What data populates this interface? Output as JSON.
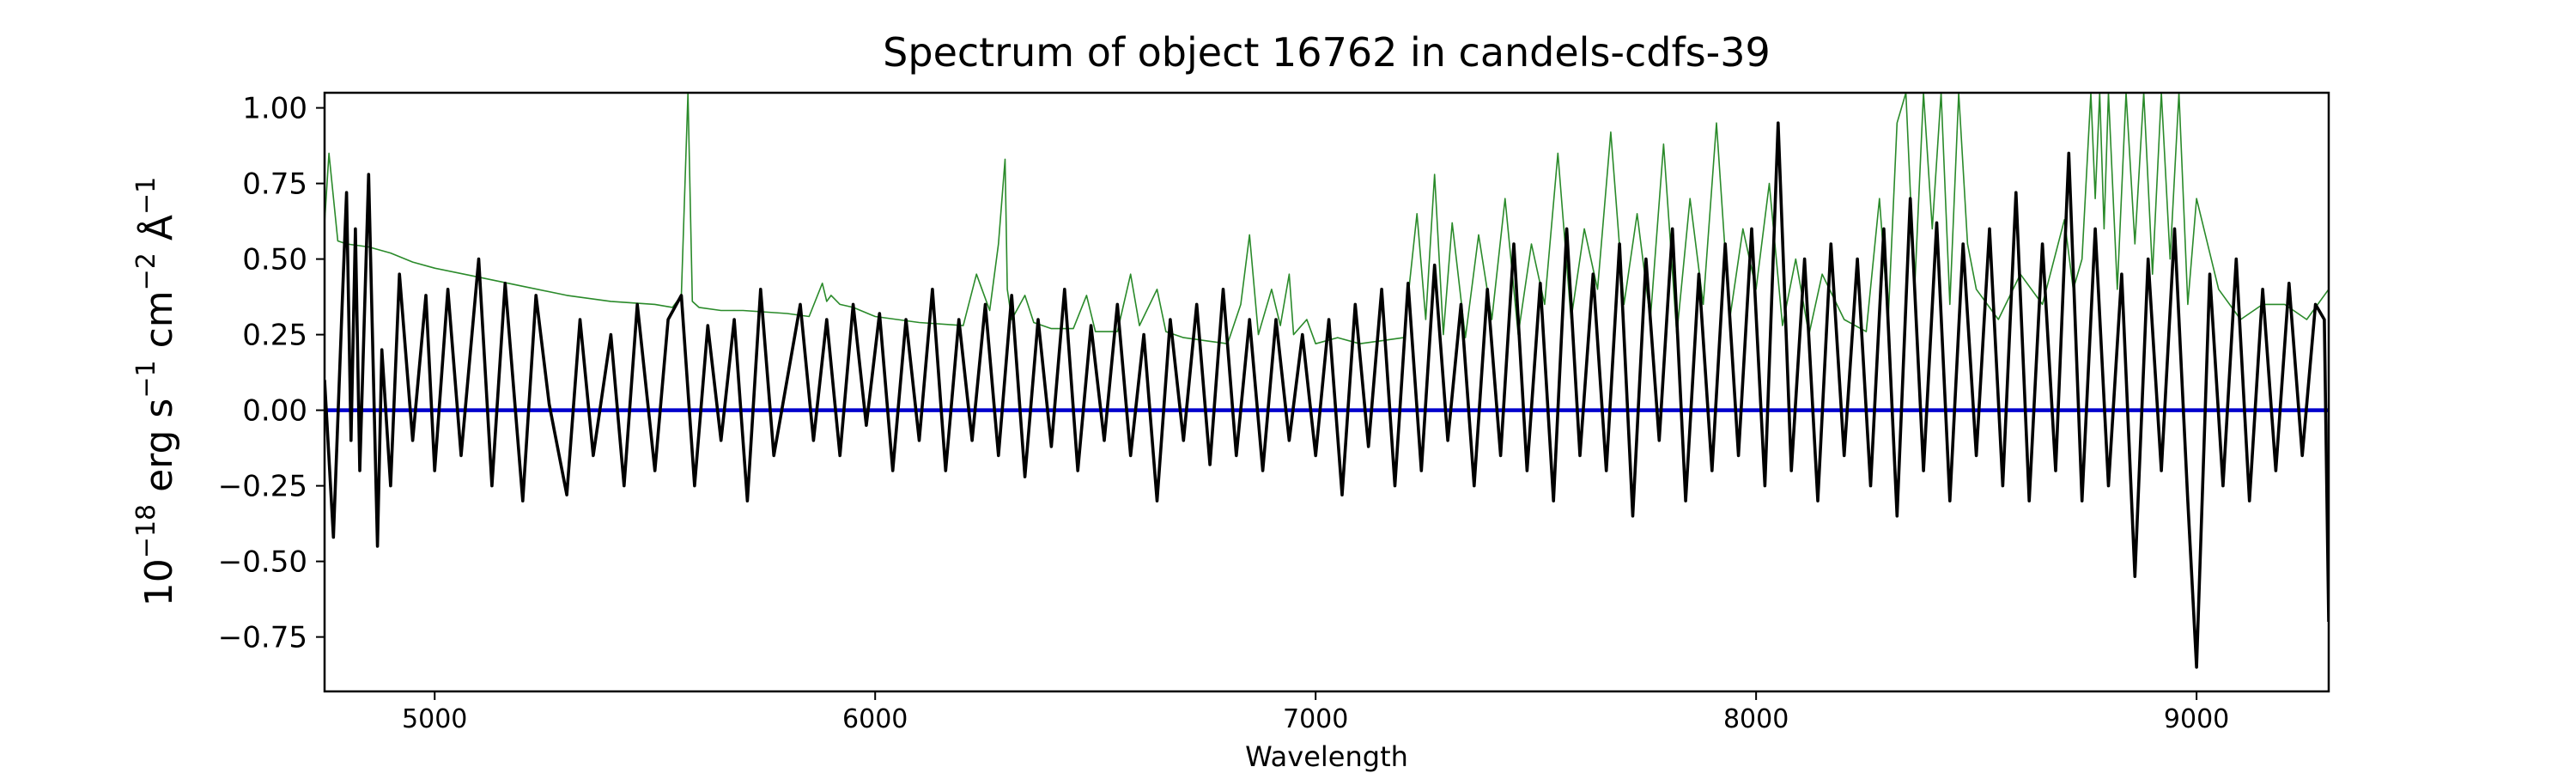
{
  "chart_data": {
    "type": "line",
    "title": "Spectrum of object 16762 in candels-cdfs-39",
    "xlabel": "Wavelength",
    "ylabel": {
      "base": "10",
      "base_exp": "−18",
      "text1": " erg s",
      "exp1": "−1",
      "text2": " cm",
      "exp2": "−2",
      "text3": " Å",
      "exp3": "−1"
    },
    "xlim": [
      4750,
      9300
    ],
    "ylim": [
      -0.93,
      1.05
    ],
    "xticks": [
      5000,
      6000,
      7000,
      8000,
      9000
    ],
    "xtick_labels": [
      "5000",
      "6000",
      "7000",
      "8000",
      "9000"
    ],
    "yticks": [
      -0.75,
      -0.5,
      -0.25,
      0.0,
      0.25,
      0.5,
      0.75,
      1.0
    ],
    "ytick_labels": [
      "−0.75",
      "−0.50",
      "−0.25",
      "0.00",
      "0.25",
      "0.50",
      "0.75",
      "1.00"
    ],
    "grid": false,
    "series": [
      {
        "color": "#2a8a2a",
        "x": [
          4750,
          4760,
          4780,
          4800,
          4850,
          4900,
          4950,
          5000,
          5100,
          5200,
          5300,
          5400,
          5500,
          5540,
          5560,
          5575,
          5585,
          5600,
          5650,
          5700,
          5800,
          5850,
          5880,
          5890,
          5900,
          5920,
          5950,
          6000,
          6100,
          6200,
          6230,
          6260,
          6280,
          6295,
          6300,
          6310,
          6340,
          6360,
          6400,
          6450,
          6480,
          6500,
          6550,
          6580,
          6600,
          6640,
          6660,
          6700,
          6750,
          6800,
          6830,
          6850,
          6870,
          6900,
          6920,
          6940,
          6950,
          6980,
          7000,
          7050,
          7100,
          7150,
          7200,
          7230,
          7250,
          7270,
          7290,
          7310,
          7340,
          7370,
          7400,
          7430,
          7460,
          7490,
          7520,
          7550,
          7580,
          7610,
          7640,
          7670,
          7700,
          7730,
          7760,
          7790,
          7820,
          7850,
          7880,
          7910,
          7940,
          7970,
          8000,
          8030,
          8060,
          8090,
          8120,
          8150,
          8200,
          8250,
          8280,
          8300,
          8320,
          8340,
          8360,
          8380,
          8400,
          8420,
          8440,
          8460,
          8480,
          8500,
          8550,
          8600,
          8650,
          8700,
          8720,
          8740,
          8760,
          8770,
          8780,
          8790,
          8800,
          8820,
          8840,
          8860,
          8880,
          8900,
          8920,
          8940,
          8960,
          8980,
          9000,
          9050,
          9100,
          9150,
          9200,
          9250,
          9300
        ],
        "y": [
          0.62,
          0.85,
          0.56,
          0.55,
          0.54,
          0.52,
          0.49,
          0.47,
          0.44,
          0.41,
          0.38,
          0.36,
          0.35,
          0.34,
          0.38,
          1.05,
          0.36,
          0.34,
          0.33,
          0.33,
          0.32,
          0.31,
          0.42,
          0.36,
          0.38,
          0.35,
          0.34,
          0.31,
          0.29,
          0.28,
          0.45,
          0.33,
          0.55,
          0.83,
          0.4,
          0.3,
          0.38,
          0.29,
          0.27,
          0.27,
          0.38,
          0.26,
          0.26,
          0.45,
          0.28,
          0.4,
          0.26,
          0.24,
          0.23,
          0.22,
          0.35,
          0.58,
          0.25,
          0.4,
          0.28,
          0.45,
          0.25,
          0.3,
          0.22,
          0.24,
          0.22,
          0.23,
          0.24,
          0.65,
          0.3,
          0.78,
          0.25,
          0.62,
          0.24,
          0.58,
          0.3,
          0.7,
          0.25,
          0.55,
          0.35,
          0.85,
          0.3,
          0.6,
          0.4,
          0.92,
          0.35,
          0.65,
          0.3,
          0.88,
          0.25,
          0.7,
          0.35,
          0.95,
          0.3,
          0.6,
          0.4,
          0.75,
          0.28,
          0.5,
          0.25,
          0.45,
          0.3,
          0.26,
          0.7,
          0.3,
          0.95,
          1.05,
          0.4,
          1.05,
          0.6,
          1.05,
          0.35,
          1.05,
          0.55,
          0.4,
          0.3,
          0.45,
          0.35,
          0.63,
          0.4,
          0.5,
          1.05,
          0.7,
          1.05,
          0.6,
          1.05,
          0.4,
          1.05,
          0.55,
          1.05,
          0.45,
          1.05,
          0.5,
          1.05,
          0.35,
          0.7,
          0.4,
          0.3,
          0.35,
          0.35,
          0.3,
          0.4
        ]
      },
      {
        "color": "#0000cc",
        "x": [
          4750,
          9300
        ],
        "y": [
          0.0,
          0.0
        ]
      },
      {
        "color": "#000000",
        "x": [
          4750,
          4770,
          4790,
          4800,
          4810,
          4820,
          4830,
          4850,
          4870,
          4880,
          4900,
          4920,
          4950,
          4980,
          5000,
          5030,
          5060,
          5100,
          5130,
          5160,
          5200,
          5230,
          5260,
          5300,
          5330,
          5360,
          5400,
          5430,
          5460,
          5500,
          5530,
          5560,
          5590,
          5620,
          5650,
          5680,
          5710,
          5740,
          5770,
          5800,
          5830,
          5860,
          5890,
          5920,
          5950,
          5980,
          6010,
          6040,
          6070,
          6100,
          6130,
          6160,
          6190,
          6220,
          6250,
          6280,
          6310,
          6340,
          6370,
          6400,
          6430,
          6460,
          6490,
          6520,
          6550,
          6580,
          6610,
          6640,
          6670,
          6700,
          6730,
          6760,
          6790,
          6820,
          6850,
          6880,
          6910,
          6940,
          6970,
          7000,
          7030,
          7060,
          7090,
          7120,
          7150,
          7180,
          7210,
          7240,
          7270,
          7300,
          7330,
          7360,
          7390,
          7420,
          7450,
          7480,
          7510,
          7540,
          7570,
          7600,
          7630,
          7660,
          7690,
          7720,
          7750,
          7780,
          7810,
          7840,
          7870,
          7900,
          7930,
          7960,
          7990,
          8020,
          8050,
          8080,
          8110,
          8140,
          8170,
          8200,
          8230,
          8260,
          8290,
          8320,
          8350,
          8380,
          8410,
          8440,
          8470,
          8500,
          8530,
          8560,
          8590,
          8620,
          8650,
          8680,
          8710,
          8740,
          8770,
          8800,
          8830,
          8860,
          8890,
          8920,
          8950,
          8980,
          9000,
          9030,
          9060,
          9090,
          9120,
          9150,
          9180,
          9210,
          9240,
          9270,
          9290,
          9300
        ],
        "y": [
          0.1,
          -0.42,
          0.35,
          0.72,
          -0.1,
          0.6,
          -0.2,
          0.78,
          -0.45,
          0.2,
          -0.25,
          0.45,
          -0.1,
          0.38,
          -0.2,
          0.4,
          -0.15,
          0.5,
          -0.25,
          0.42,
          -0.3,
          0.38,
          0.02,
          -0.28,
          0.3,
          -0.15,
          0.25,
          -0.25,
          0.35,
          -0.2,
          0.3,
          0.38,
          -0.25,
          0.28,
          -0.1,
          0.3,
          -0.3,
          0.4,
          -0.15,
          0.1,
          0.35,
          -0.1,
          0.3,
          -0.15,
          0.35,
          -0.05,
          0.32,
          -0.2,
          0.3,
          -0.1,
          0.4,
          -0.2,
          0.3,
          -0.1,
          0.35,
          -0.15,
          0.38,
          -0.22,
          0.3,
          -0.12,
          0.4,
          -0.2,
          0.28,
          -0.1,
          0.35,
          -0.15,
          0.25,
          -0.3,
          0.3,
          -0.1,
          0.35,
          -0.18,
          0.4,
          -0.15,
          0.3,
          -0.2,
          0.3,
          -0.1,
          0.25,
          -0.15,
          0.3,
          -0.28,
          0.35,
          -0.12,
          0.4,
          -0.25,
          0.42,
          -0.2,
          0.48,
          -0.1,
          0.35,
          -0.25,
          0.4,
          -0.15,
          0.55,
          -0.2,
          0.42,
          -0.3,
          0.6,
          -0.15,
          0.45,
          -0.2,
          0.55,
          -0.35,
          0.5,
          -0.1,
          0.6,
          -0.3,
          0.45,
          -0.2,
          0.55,
          -0.15,
          0.6,
          -0.25,
          0.95,
          -0.2,
          0.5,
          -0.3,
          0.55,
          -0.15,
          0.5,
          -0.25,
          0.6,
          -0.35,
          0.7,
          -0.2,
          0.62,
          -0.3,
          0.55,
          -0.15,
          0.6,
          -0.25,
          0.72,
          -0.3,
          0.55,
          -0.2,
          0.85,
          -0.3,
          0.6,
          -0.25,
          0.45,
          -0.55,
          0.5,
          -0.2,
          0.6,
          -0.3,
          -0.85,
          0.45,
          -0.25,
          0.5,
          -0.3,
          0.4,
          -0.2,
          0.42,
          -0.15,
          0.35,
          0.3,
          -0.7
        ]
      }
    ]
  }
}
